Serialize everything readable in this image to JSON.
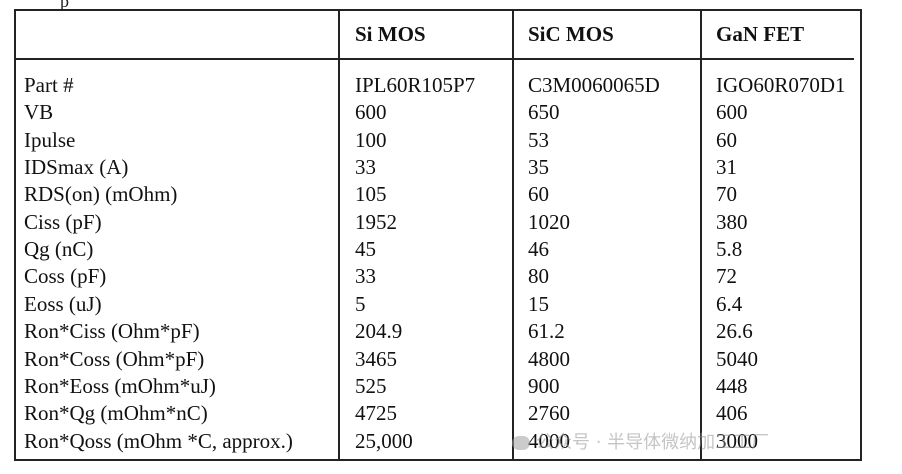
{
  "top_fragment": "p",
  "table": {
    "columns": [
      "",
      "Si MOS",
      "SiC MOS",
      "GaN FET"
    ],
    "rows": [
      [
        "Part #",
        "IPL60R105P7",
        "C3M0060065D",
        "IGO60R070D1"
      ],
      [
        "VB",
        "600",
        "650",
        "600"
      ],
      [
        "Ipulse",
        "100",
        "53",
        "60"
      ],
      [
        "IDSmax (A)",
        "33",
        "35",
        "31"
      ],
      [
        "RDS(on) (mOhm)",
        "105",
        "60",
        "70"
      ],
      [
        "Ciss (pF)",
        "1952",
        "1020",
        "380"
      ],
      [
        "Qg (nC)",
        "45",
        "46",
        "5.8"
      ],
      [
        "Coss (pF)",
        "33",
        "80",
        "72"
      ],
      [
        "Eoss (uJ)",
        "5",
        "15",
        "6.4"
      ],
      [
        "Ron*Ciss (Ohm*pF)",
        "204.9",
        "61.2",
        "26.6"
      ],
      [
        "Ron*Coss (Ohm*pF)",
        "3465",
        "4800",
        "5040"
      ],
      [
        "Ron*Eoss (mOhm*uJ)",
        "525",
        "900",
        "448"
      ],
      [
        "Ron*Qg (mOhm*nC)",
        "4725",
        "2760",
        "406"
      ],
      [
        "Ron*Qoss (mOhm *C, approx.)",
        "25,000",
        "4000",
        "3000"
      ]
    ]
  },
  "watermark": "公众号 · 半导体微纳加工工厂"
}
